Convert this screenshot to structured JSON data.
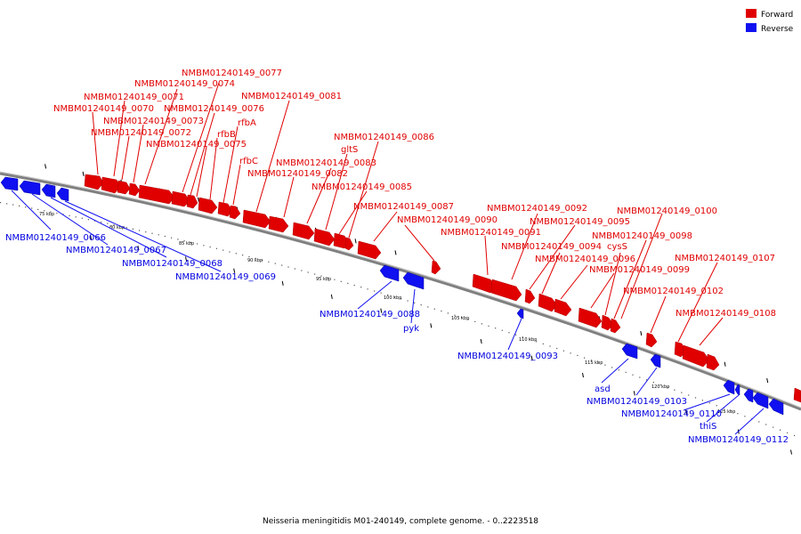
{
  "legend": {
    "items": [
      {
        "label": "Forward",
        "color": "#e00000"
      },
      {
        "label": "Reverse",
        "color": "#1010f0"
      }
    ]
  },
  "caption": "Neisseria meningitidis M01-240149, complete genome. - 0..2223518",
  "scale_labels": [
    "75 kbp",
    "80 kbp",
    "85 kbp",
    "90 kbp",
    "95 kbp",
    "100 kbp",
    "105 kbp",
    "110 kbp",
    "115 kbp",
    "120 kbp",
    "125 kbp"
  ],
  "genes": {
    "forward": [
      "NMBM01240149_0070",
      "NMBM01240149_0071",
      "NMBM01240149_0072",
      "NMBM01240149_0073",
      "NMBM01240149_0074",
      "NMBM01240149_0077",
      "NMBM01240149_0076",
      "NMBM01240149_0075",
      "rfbB",
      "rfbA",
      "rfbC",
      "NMBM01240149_0081",
      "NMBM01240149_0082",
      "NMBM01240149_0083",
      "gltS",
      "NMBM01240149_0085",
      "NMBM01240149_0086",
      "NMBM01240149_0087",
      "NMBM01240149_0090",
      "NMBM01240149_0091",
      "NMBM01240149_0092",
      "NMBM01240149_0095",
      "NMBM01240149_0094",
      "NMBM01240149_0096",
      "NMBM01240149_0099",
      "cysS",
      "NMBM01240149_0098",
      "NMBM01240149_0100",
      "NMBM01240149_0102",
      "NMBM01240149_0107",
      "NMBM01240149_0108"
    ],
    "reverse": [
      "NMBM01240149_0066",
      "NMBM01240149_0067",
      "NMBM01240149_0068",
      "NMBM01240149_0069",
      "NMBM01240149_0088",
      "pyk",
      "NMBM01240149_0093",
      "asd",
      "NMBM01240149_0103",
      "NMBM01240149_0110",
      "thiS",
      "NMBM01240149_0112"
    ]
  },
  "colors": {
    "forward": "#e00000",
    "reverse": "#1010f0",
    "backbone": "#808080"
  }
}
